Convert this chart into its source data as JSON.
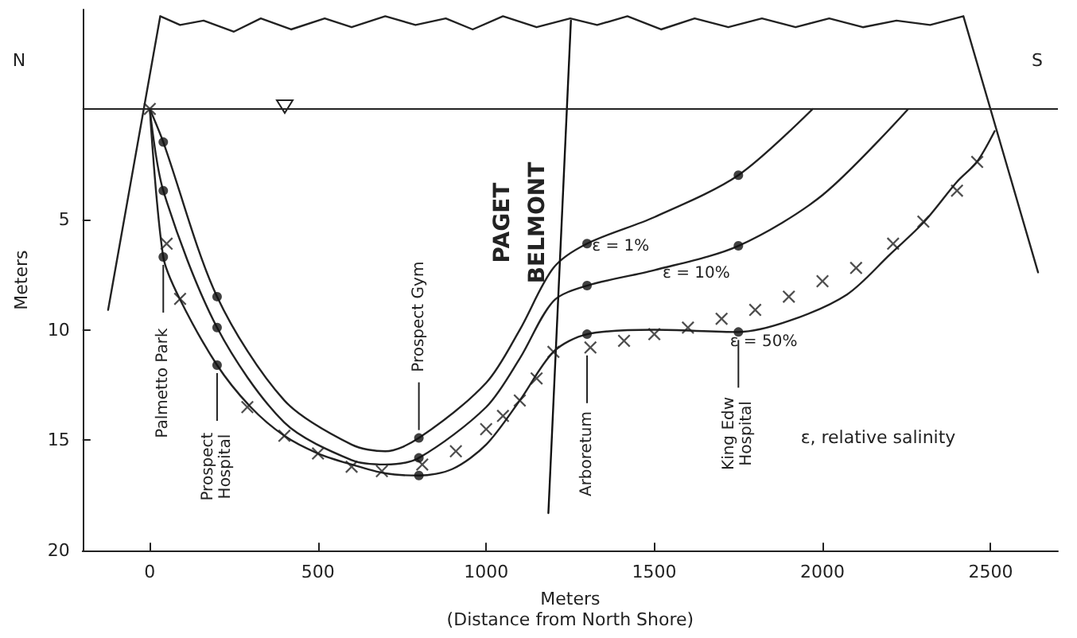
{
  "chart_data": {
    "type": "line",
    "xlabel": "Meters\n(Distance from North Shore)",
    "ylabel": "Meters",
    "xlim": [
      -200,
      2700
    ],
    "xticks": [
      0,
      500,
      1000,
      1500,
      2000,
      2500
    ],
    "ylim": [
      20,
      -4.5
    ],
    "yticks": [
      5,
      10,
      15,
      20
    ],
    "grid": false,
    "legend": false,
    "ref_lines": [
      {
        "axis": "y",
        "value": 0,
        "color": "#222222",
        "line_style": "solid"
      }
    ],
    "annotations": [
      "N",
      "S",
      "PAGET",
      "BELMONT",
      "ε, relative salinity",
      {
        "text": "Palmetto Park",
        "x": 40,
        "y": 6.7
      },
      {
        "text": "Prospect\nHospital",
        "x": 200,
        "y": 11.6
      },
      {
        "text": "Prospect Gym",
        "x": 800,
        "y": 14.9
      },
      {
        "text": "Arboretum",
        "x": 1300,
        "y": 10.8
      },
      {
        "text": "King Edw\nHospital",
        "x": 1750,
        "y": 10.1
      }
    ],
    "series": [
      {
        "name": "ε = 1%",
        "marker": "none",
        "color": "#222222",
        "x": [
          0,
          40,
          200,
          400,
          600,
          700,
          800,
          1000,
          1100,
          1200,
          1300,
          1500,
          1750,
          1971
        ],
        "values": [
          0,
          1.5,
          8.5,
          13.2,
          15.2,
          15.5,
          14.9,
          12.4,
          10.0,
          7.2,
          6.1,
          4.9,
          3.0,
          0
        ]
      },
      {
        "name": "ε = 10%",
        "marker": "none",
        "color": "#222222",
        "x": [
          0,
          40,
          200,
          400,
          600,
          700,
          800,
          1000,
          1100,
          1200,
          1300,
          1500,
          1750,
          2000,
          2255
        ],
        "values": [
          0,
          3.7,
          9.9,
          14.2,
          15.9,
          16.1,
          15.8,
          13.5,
          11.3,
          8.7,
          8.0,
          7.3,
          6.2,
          3.9,
          0
        ]
      },
      {
        "name": "ε = 50%",
        "marker": "none",
        "color": "#222222",
        "x": [
          0,
          40,
          89,
          200,
          300,
          400,
          500,
          600,
          700,
          800,
          900,
          1000,
          1100,
          1200,
          1300,
          1500,
          1750,
          1900,
          2073,
          2200,
          2303,
          2400,
          2459,
          2512
        ],
        "values": [
          0,
          6.7,
          8.6,
          11.6,
          13.5,
          14.8,
          15.6,
          16.1,
          16.5,
          16.6,
          16.3,
          15.2,
          13.2,
          11.0,
          10.2,
          10.0,
          10.1,
          9.6,
          8.4,
          6.6,
          5.1,
          3.3,
          2.4,
          1.0
        ]
      },
      {
        "type": "scatter",
        "marker": "cross",
        "color": "#222222",
        "x": [
          0,
          50,
          90,
          290,
          400,
          500,
          600,
          690,
          810,
          910,
          1000,
          1050,
          1100,
          1150,
          1200,
          1310,
          1410,
          1500,
          1600,
          1700,
          1800,
          1900,
          2000,
          2100,
          2210,
          2300,
          2400,
          2460
        ],
        "values": [
          0,
          6.1,
          8.6,
          13.5,
          14.8,
          15.6,
          16.2,
          16.4,
          16.1,
          15.5,
          14.5,
          13.9,
          13.2,
          12.2,
          11.0,
          10.8,
          10.5,
          10.2,
          9.9,
          9.5,
          9.1,
          8.5,
          7.8,
          7.2,
          6.1,
          5.1,
          3.7,
          2.4
        ]
      },
      {
        "type": "scatter",
        "marker": "circle",
        "color": "#111111",
        "x": [
          40,
          40,
          40,
          200,
          200,
          200,
          800,
          800,
          800,
          1300,
          1300,
          1300,
          1750,
          1750,
          1750
        ],
        "values": [
          1.5,
          3.7,
          6.7,
          8.5,
          9.9,
          11.6,
          14.9,
          15.8,
          16.6,
          6.1,
          8.0,
          10.2,
          3.0,
          6.2,
          10.1
        ]
      },
      {
        "marker": "none",
        "color": "#222222",
        "x": [
          -124,
          31,
          90,
          160,
          250,
          330,
          420,
          520,
          600,
          700,
          790,
          880,
          960,
          1050,
          1150,
          1250,
          1330,
          1420,
          1520,
          1620,
          1720,
          1820,
          1920,
          2020,
          2120,
          2220,
          2320,
          2419,
          2641
        ],
        "values": [
          9.1,
          -4.2,
          -3.8,
          -4.0,
          -3.5,
          -4.1,
          -3.6,
          -4.1,
          -3.7,
          -4.2,
          -3.8,
          -4.1,
          -3.6,
          -4.2,
          -3.7,
          -4.1,
          -3.8,
          -4.2,
          -3.6,
          -4.1,
          -3.7,
          -4.1,
          -3.7,
          -4.1,
          -3.7,
          -4.0,
          -3.8,
          -4.2,
          7.4
        ]
      },
      {
        "marker": "none",
        "color": "#111111",
        "x": [
          1185,
          1252
        ],
        "values": [
          18.3,
          -4.0
        ]
      }
    ]
  }
}
